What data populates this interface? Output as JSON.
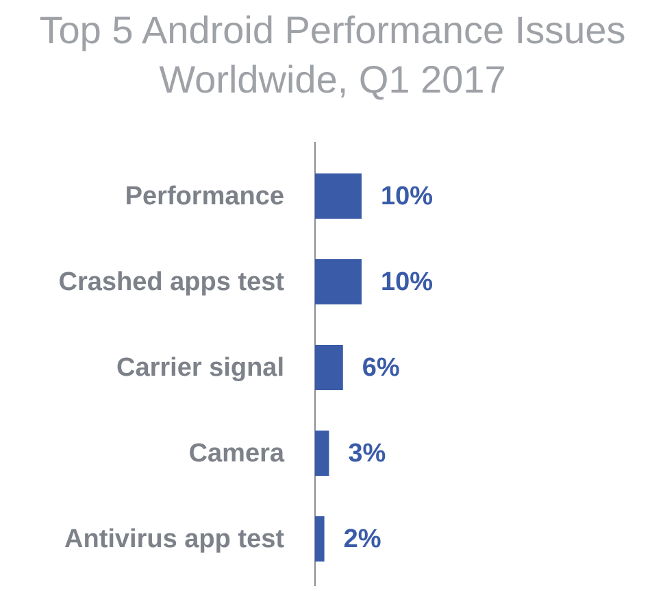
{
  "colors": {
    "bar": "#3a5ba8",
    "value_label": "#3a5ba8",
    "category_label": "#7d8189",
    "title": "#9ea1a6",
    "axis": "#8a8d93"
  },
  "chart_data": {
    "type": "bar",
    "orientation": "horizontal",
    "title_lines": [
      "Top 5 Android Performance Issues",
      "Worldwide, Q1 2017"
    ],
    "categories": [
      "Performance",
      "Crashed apps test",
      "Carrier signal",
      "Camera",
      "Antivirus app test"
    ],
    "values": [
      10,
      10,
      6,
      3,
      2
    ],
    "value_labels": [
      "10%",
      "10%",
      "6%",
      "3%",
      "2%"
    ],
    "unit": "%",
    "xlabel": "",
    "ylabel": "",
    "xlim": [
      0,
      10
    ],
    "grid": false,
    "legend": "none"
  }
}
